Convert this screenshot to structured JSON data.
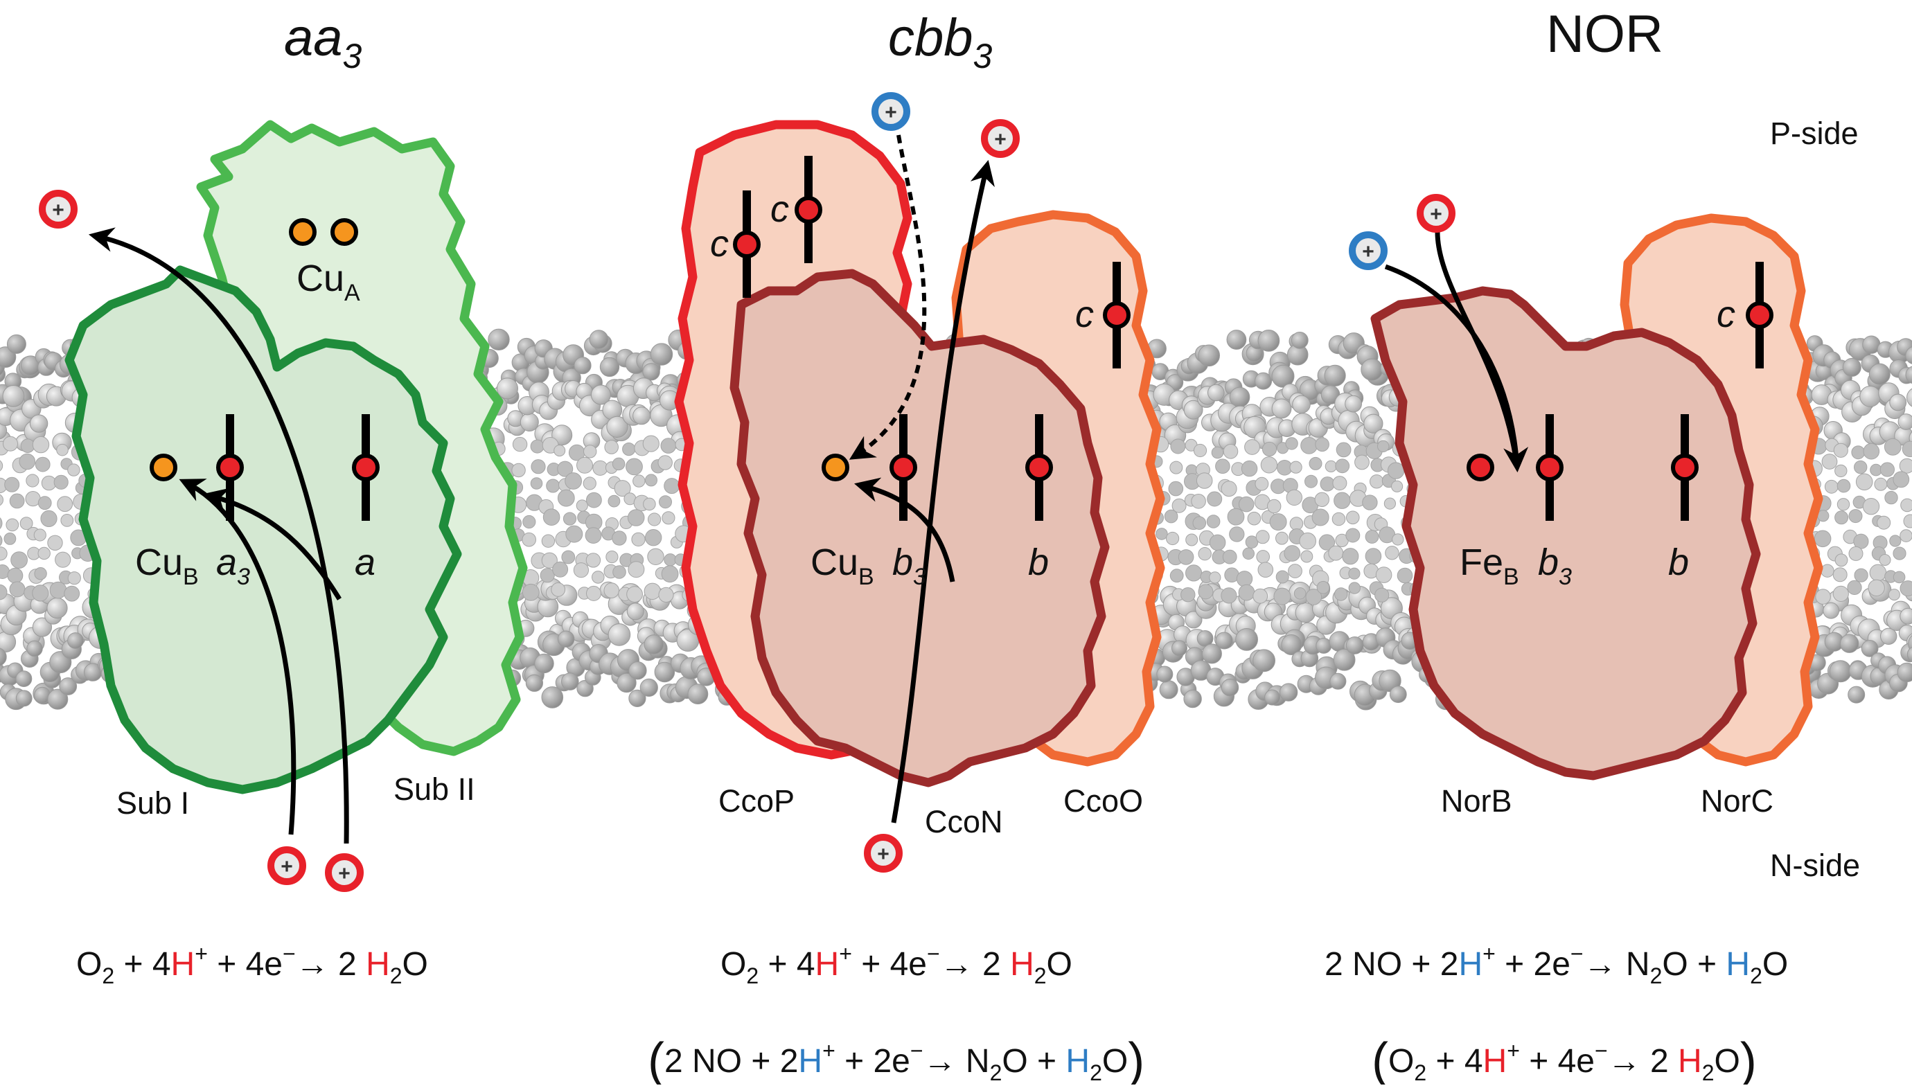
{
  "titles": {
    "aa3": "aa",
    "aa3_sub": "3",
    "cbb3": "cbb",
    "cbb3_sub": "3",
    "nor": "NOR"
  },
  "sides": {
    "p": "P-side",
    "n": "N-side"
  },
  "aa3": {
    "sub1": "Sub I",
    "sub2": "Sub II",
    "cuA": "Cu",
    "cuA_sub": "A",
    "cuB": "Cu",
    "cuB_sub": "B",
    "a3": "a",
    "a3_sub": "3",
    "a": "a"
  },
  "cbb3": {
    "ccop": "CcoP",
    "ccon": "CcoN",
    "ccoo": "CcoO",
    "c1": "c",
    "c2": "c",
    "c3": "c",
    "cuB": "Cu",
    "cuB_sub": "B",
    "b3": "b",
    "b3_sub": "3",
    "b": "b"
  },
  "nor": {
    "norb": "NorB",
    "norc": "NorC",
    "c": "c",
    "feB": "Fe",
    "feB_sub": "B",
    "b3": "b",
    "b3_sub": "3",
    "b": "b"
  },
  "proton_symbol": "+",
  "eq": {
    "o2": "O",
    "o2_sub": "2",
    "four_plus": " + 4",
    "h": "H",
    "h_sup": "+",
    "plus_4e": " + 4e",
    "e_sup": "−",
    "arrow": "→",
    "two": " 2 ",
    "h2o_h": "H",
    "h2o_sub": "2",
    "h2o_o": "O",
    "no": "2 NO + 2",
    "plus_2e": " + 2e",
    "n2o_n": " N",
    "n2o_sub": "2",
    "n2o_o": "O + ",
    "lparen": "(",
    "rparen": ")"
  },
  "colors": {
    "aa3_sub1_fill": "#d4e8d2",
    "aa3_sub1_stroke": "#1f8c3b",
    "aa3_sub2_fill": "#dff0db",
    "aa3_sub2_stroke": "#4bb84f",
    "ccop_stroke": "#e8242a",
    "ccon_stroke": "#9b2b2b",
    "ccoo_stroke": "#f06a34",
    "peach_fill": "#f8d2c0",
    "core_fill": "#e6c0b4",
    "heme": "#e8242a",
    "cu": "#f5951e",
    "proton_red": "#e8212a",
    "proton_blue": "#2e7dc4"
  }
}
